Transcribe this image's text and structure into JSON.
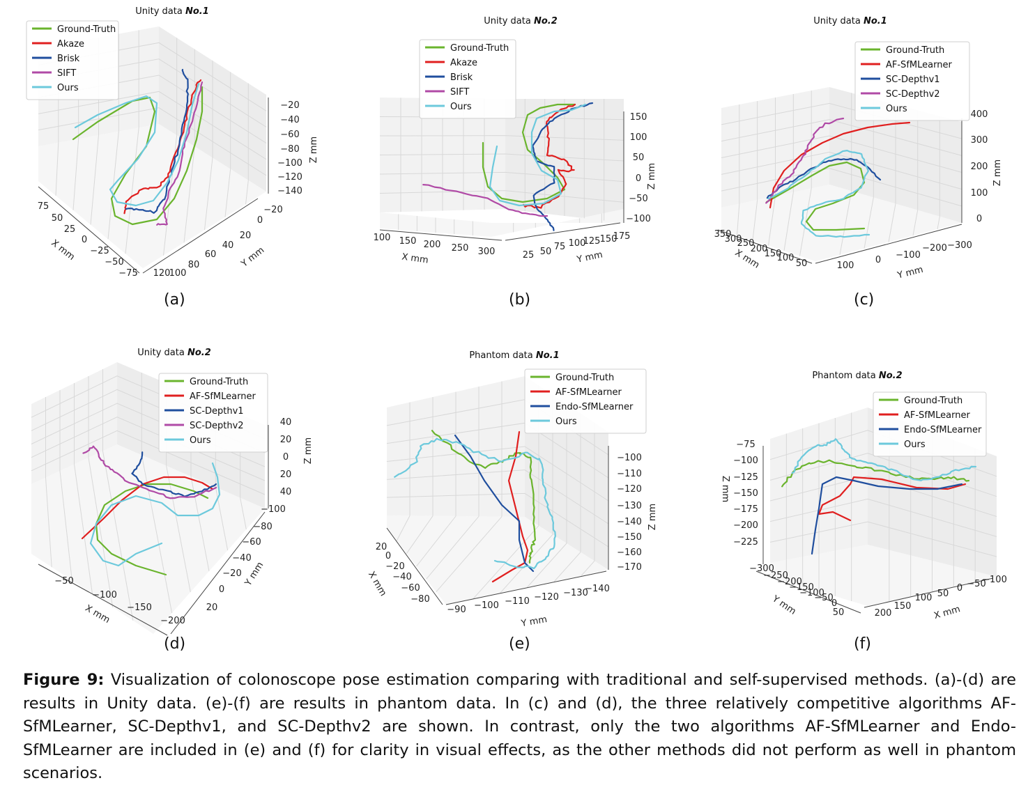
{
  "colors": {
    "Ground-Truth": "#6ab42d",
    "Akaze": "#e01f1f",
    "Brisk": "#1f4e9e",
    "SIFT": "#b04aa6",
    "AF-SfMLearner": "#e01f1f",
    "SC-Depthv1": "#1f4e9e",
    "SC-Depthv2": "#b04aa6",
    "Endo-SfMLearner": "#1f4e9e",
    "Ours": "#6cc9dc"
  },
  "panels": [
    {
      "label": "(a)",
      "title_prefix": "Unity data",
      "title_num": "No.1",
      "legend": [
        "Ground-Truth",
        "Akaze",
        "Brisk",
        "SIFT",
        "Ours"
      ],
      "x_label": "X mm",
      "y_label": "Y mm",
      "z_label": "Z mm",
      "x_ticks": [
        "75",
        "50",
        "25",
        "0",
        "−25",
        "−50",
        "−75"
      ],
      "y_ticks": [
        "−20",
        "0",
        "20",
        "40",
        "60",
        "80",
        "100",
        "120"
      ],
      "z_ticks": [
        "−20",
        "−40",
        "−60",
        "−80",
        "−100",
        "−120",
        "−140"
      ]
    },
    {
      "label": "(b)",
      "title_prefix": "Unity data",
      "title_num": "No.2",
      "legend": [
        "Ground-Truth",
        "Akaze",
        "Brisk",
        "SIFT",
        "Ours"
      ],
      "x_label": "X mm",
      "y_label": "Y mm",
      "z_label": "Z mm",
      "x_ticks": [
        "100",
        "150",
        "200",
        "250",
        "300"
      ],
      "y_ticks": [
        "25",
        "50",
        "75",
        "100",
        "125",
        "150",
        "175"
      ],
      "z_ticks": [
        "150",
        "100",
        "50",
        "0",
        "−50",
        "−100"
      ]
    },
    {
      "label": "(c)",
      "title_prefix": "Unity data",
      "title_num": "No.1",
      "legend": [
        "Ground-Truth",
        "AF-SfMLearner",
        "SC-Depthv1",
        "SC-Depthv2",
        "Ours"
      ],
      "x_label": "X mm",
      "y_label": "Y mm",
      "z_label": "Z mm",
      "x_ticks": [
        "350",
        "300",
        "250",
        "200",
        "150",
        "100",
        "50"
      ],
      "y_ticks": [
        "100",
        "0",
        "−100",
        "−200",
        "−300"
      ],
      "z_ticks": [
        "400",
        "300",
        "200",
        "100",
        "0"
      ]
    },
    {
      "label": "(d)",
      "title_prefix": "Unity data",
      "title_num": "No.2",
      "legend": [
        "Ground-Truth",
        "AF-SfMLearner",
        "SC-Depthv1",
        "SC-Depthv2",
        "Ours"
      ],
      "x_label": "X mm",
      "y_label": "Y mm",
      "z_label": "Z mm",
      "x_ticks": [
        "−50",
        "−100",
        "−150",
        "−200"
      ],
      "y_ticks": [
        "−100",
        "−80",
        "−60",
        "−40",
        "−20",
        "0",
        "20"
      ],
      "z_ticks": [
        "40",
        "20",
        "0",
        "20",
        "40"
      ]
    },
    {
      "label": "(e)",
      "title_prefix": "Phantom data",
      "title_num": "No.1",
      "legend": [
        "Ground-Truth",
        "AF-SfMLearner",
        "Endo-SfMLearner",
        "Ours"
      ],
      "x_label": "X mm",
      "y_label": "Y mm",
      "z_label": "Z mm",
      "x_ticks": [
        "20",
        "0",
        "−20",
        "−40",
        "−60",
        "−80"
      ],
      "y_ticks": [
        "−90",
        "−100",
        "−110",
        "−120",
        "−130",
        "−140"
      ],
      "z_ticks": [
        "−100",
        "−110",
        "−120",
        "−130",
        "−140",
        "−150",
        "−160",
        "−170"
      ]
    },
    {
      "label": "(f)",
      "title_prefix": "Phantom data",
      "title_num": "No.2",
      "legend": [
        "Ground-Truth",
        "AF-SfMLearner",
        "Endo-SfMLearner",
        "Ours"
      ],
      "x_label": "X mm",
      "y_label": "Y mm",
      "z_label": "Z mm",
      "x_ticks": [
        "200",
        "150",
        "100",
        "50",
        "0",
        "−50",
        "−100"
      ],
      "y_ticks": [
        "−300",
        "−250",
        "−200",
        "−150",
        "−100",
        "−50",
        "0",
        "50"
      ],
      "z_ticks": [
        "−75",
        "−100",
        "−125",
        "−150",
        "−175",
        "−200",
        "−225"
      ]
    }
  ],
  "chart_data": [
    {
      "type": "line",
      "title": "Unity data No.1",
      "series_names": [
        "Ground-Truth",
        "Akaze",
        "Brisk",
        "SIFT",
        "Ours"
      ],
      "xlabel": "X mm",
      "ylabel": "Y mm",
      "zlabel": "Z mm",
      "zlim": [
        -140,
        -20
      ]
    },
    {
      "type": "line",
      "title": "Unity data No.2",
      "series_names": [
        "Ground-Truth",
        "Akaze",
        "Brisk",
        "SIFT",
        "Ours"
      ],
      "xlabel": "X mm",
      "ylabel": "Y mm",
      "zlabel": "Z mm",
      "zlim": [
        -100,
        150
      ]
    },
    {
      "type": "line",
      "title": "Unity data No.1",
      "series_names": [
        "Ground-Truth",
        "AF-SfMLearner",
        "SC-Depthv1",
        "SC-Depthv2",
        "Ours"
      ],
      "xlabel": "X mm",
      "ylabel": "Y mm",
      "zlabel": "Z mm",
      "zlim": [
        0,
        400
      ]
    },
    {
      "type": "line",
      "title": "Unity data No.2",
      "series_names": [
        "Ground-Truth",
        "AF-SfMLearner",
        "SC-Depthv1",
        "SC-Depthv2",
        "Ours"
      ],
      "xlabel": "X mm",
      "ylabel": "Y mm",
      "zlabel": "Z mm"
    },
    {
      "type": "line",
      "title": "Phantom data No.1",
      "series_names": [
        "Ground-Truth",
        "AF-SfMLearner",
        "Endo-SfMLearner",
        "Ours"
      ],
      "xlabel": "X mm",
      "ylabel": "Y mm",
      "zlabel": "Z mm",
      "zlim": [
        -170,
        -100
      ]
    },
    {
      "type": "line",
      "title": "Phantom data No.2",
      "series_names": [
        "Ground-Truth",
        "AF-SfMLearner",
        "Endo-SfMLearner",
        "Ours"
      ],
      "xlabel": "X mm",
      "ylabel": "Y mm",
      "zlabel": "Z mm",
      "zlim": [
        -225,
        -75
      ]
    }
  ],
  "caption": {
    "label": "Figure 9:",
    "text": "Visualization of colonoscope pose estimation comparing with traditional and self-supervised methods. (a)-(d) are results in Unity data. (e)-(f) are results in phantom data. In (c) and (d), the three relatively competitive algorithms AF-SfMLearner, SC-Depthv1, and SC-Depthv2 are shown. In contrast, only the two algorithms AF-SfMLearner and Endo-SfMLearner are included in (e) and (f) for clarity in visual effects, as the other methods did not perform as well in phantom scenarios."
  }
}
